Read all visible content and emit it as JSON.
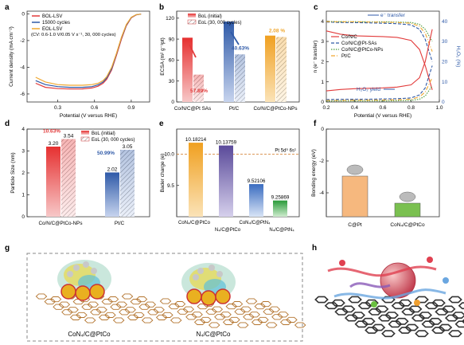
{
  "panel_letters": [
    "a",
    "b",
    "c",
    "d",
    "e",
    "f",
    "g",
    "h"
  ],
  "colors": {
    "red": "#e23b3b",
    "blue": "#2f5aa8",
    "orange": "#f0a830",
    "green": "#4a9a3a",
    "purple": "#7a5fa8",
    "skyblue": "#5b8fd6",
    "peach": "#f6b87e",
    "olive": "#7aa83a"
  },
  "chart_data": [
    {
      "panel": "a",
      "type": "line",
      "xlabel": "Potential (V versus RHE)",
      "ylabel": "Current density (mA cm⁻²)",
      "xticks": [
        "0.3",
        "0.6",
        "0.9"
      ],
      "yticks": [
        "0",
        "-2",
        "-4",
        "-6"
      ],
      "xlim": [
        0.05,
        1.05
      ],
      "ylim": [
        -6.6,
        0.2
      ],
      "annotation": "(CV: 0.6-1.0 V/0.05 V s⁻¹, 30, 000 cycles)",
      "series": [
        {
          "name": "BOL-LSV",
          "color": "#e23b3b",
          "x": [
            0.12,
            0.2,
            0.3,
            0.4,
            0.5,
            0.58,
            0.63,
            0.67,
            0.7,
            0.74,
            0.78,
            0.82,
            0.86,
            0.9,
            0.94,
            0.98
          ],
          "y": [
            -5.2,
            -5.5,
            -5.6,
            -5.63,
            -5.62,
            -5.55,
            -5.42,
            -5.2,
            -4.9,
            -4.2,
            -3.1,
            -1.9,
            -0.9,
            -0.3,
            -0.08,
            -0.02
          ]
        },
        {
          "name": "15000 cycles",
          "color": "#2f5aa8",
          "x": [
            0.12,
            0.2,
            0.3,
            0.4,
            0.5,
            0.58,
            0.63,
            0.67,
            0.7,
            0.74,
            0.78,
            0.82,
            0.86,
            0.9,
            0.94,
            0.98
          ],
          "y": [
            -5.0,
            -5.3,
            -5.45,
            -5.5,
            -5.5,
            -5.45,
            -5.32,
            -5.1,
            -4.8,
            -4.1,
            -3.0,
            -1.8,
            -0.85,
            -0.28,
            -0.07,
            -0.02
          ]
        },
        {
          "name": "EOL-LSV",
          "color": "#f0a830",
          "x": [
            0.12,
            0.2,
            0.3,
            0.4,
            0.5,
            0.58,
            0.63,
            0.67,
            0.7,
            0.74,
            0.78,
            0.82,
            0.86,
            0.9,
            0.94,
            0.98
          ],
          "y": [
            -4.75,
            -5.1,
            -5.3,
            -5.35,
            -5.35,
            -5.3,
            -5.2,
            -5.0,
            -4.7,
            -4.0,
            -2.95,
            -1.75,
            -0.8,
            -0.26,
            -0.06,
            -0.02
          ]
        }
      ]
    },
    {
      "panel": "b",
      "type": "bar",
      "ylabel": "ECSA (m² g⁻¹pt)",
      "ylim": [
        0,
        130
      ],
      "yticks": [
        0,
        30,
        60,
        90,
        120
      ],
      "legend": [
        "BoL (initial)",
        "EoL (30, 000 cycles)"
      ],
      "categories": [
        "Co/N/C@Pt SAs",
        "Pt/C",
        "Co/N/C@PtCo-NPs"
      ],
      "series": [
        {
          "name": "BoL (initial)",
          "values": [
            92,
            115,
            95
          ]
        },
        {
          "name": "EoL (30, 000 cycles)",
          "values": [
            39,
            68,
            93
          ]
        }
      ],
      "labels": [
        "57.89%",
        "40.63%",
        "2.08 %"
      ]
    },
    {
      "panel": "c",
      "type": "line",
      "xlabel": "Potential (V versus RHE)",
      "ylabel": "n (e⁻ transfer)",
      "ylabel_right": "H₂O₂ (%)",
      "xticks": [
        "0.2",
        "0.4",
        "0.6",
        "0.8",
        "1.0"
      ],
      "yticks": [
        "0",
        "1",
        "2",
        "3",
        "4"
      ],
      "yticks_right": [
        "0",
        "10",
        "20",
        "30",
        "40"
      ],
      "xlim": [
        0.2,
        1.0
      ],
      "ylim": [
        0,
        4.5
      ],
      "annotations": [
        "e⁻ transfer",
        "H₂O₂ yield"
      ],
      "series": [
        {
          "name": "Co/N/C",
          "color": "#e23b3b",
          "x": [
            0.2,
            0.3,
            0.4,
            0.5,
            0.6,
            0.7,
            0.8,
            0.86,
            0.9,
            0.95
          ],
          "y": [
            3.52,
            3.36,
            3.28,
            3.26,
            3.24,
            3.2,
            3.05,
            2.6,
            1.8,
            0.6
          ]
        },
        {
          "name": "Co/N/C@Pt-SAs",
          "color": "#2f5aa8",
          "x": [
            0.2,
            0.3,
            0.4,
            0.5,
            0.6,
            0.7,
            0.8,
            0.86,
            0.9,
            0.95
          ],
          "y": [
            3.96,
            3.94,
            3.93,
            3.92,
            3.9,
            3.88,
            3.82,
            3.6,
            3.1,
            2.0
          ]
        },
        {
          "name": "Co/N/C@PtCo-NPs",
          "color": "#4a9a3a",
          "x": [
            0.2,
            0.3,
            0.4,
            0.5,
            0.6,
            0.7,
            0.8,
            0.86,
            0.9,
            0.95
          ],
          "y": [
            3.99,
            3.98,
            3.98,
            3.97,
            3.97,
            3.96,
            3.94,
            3.85,
            3.6,
            3.0
          ]
        },
        {
          "name": "Pt/C",
          "color": "#f0a830",
          "x": [
            0.2,
            0.3,
            0.4,
            0.5,
            0.6,
            0.7,
            0.8,
            0.86,
            0.9,
            0.95
          ],
          "y": [
            3.98,
            3.97,
            3.97,
            3.96,
            3.95,
            3.94,
            3.9,
            3.75,
            3.4,
            2.5
          ]
        },
        {
          "name": "Co/N/C H₂O₂",
          "color": "#e23b3b",
          "x": [
            0.2,
            0.3,
            0.4,
            0.5,
            0.6,
            0.7,
            0.8,
            0.86,
            0.9,
            0.95
          ],
          "y": [
            0.55,
            0.62,
            0.66,
            0.68,
            0.7,
            0.74,
            0.85,
            1.2,
            2.0,
            3.6
          ]
        },
        {
          "name": "Co/N/C@Pt-SAs H₂O₂",
          "color": "#2f5aa8",
          "x": [
            0.2,
            0.3,
            0.4,
            0.5,
            0.6,
            0.7,
            0.8,
            0.86,
            0.9,
            0.95
          ],
          "y": [
            0.12,
            0.13,
            0.14,
            0.14,
            0.15,
            0.16,
            0.2,
            0.35,
            0.7,
            1.8
          ]
        },
        {
          "name": "Co/N/C@PtCo-NPs H₂O₂",
          "color": "#4a9a3a",
          "x": [
            0.2,
            0.3,
            0.4,
            0.5,
            0.6,
            0.7,
            0.8,
            0.86,
            0.9,
            0.95
          ],
          "y": [
            0.04,
            0.05,
            0.05,
            0.05,
            0.05,
            0.06,
            0.08,
            0.14,
            0.3,
            0.8
          ]
        },
        {
          "name": "Pt/C H₂O₂",
          "color": "#f0a830",
          "x": [
            0.2,
            0.3,
            0.4,
            0.5,
            0.6,
            0.7,
            0.8,
            0.86,
            0.9,
            0.95
          ],
          "y": [
            0.08,
            0.08,
            0.09,
            0.09,
            0.1,
            0.11,
            0.14,
            0.25,
            0.5,
            1.2
          ]
        }
      ]
    },
    {
      "panel": "d",
      "type": "bar",
      "ylabel": "Particle Size (nm)",
      "ylim": [
        0,
        4
      ],
      "yticks": [
        0,
        1,
        2,
        3,
        4
      ],
      "legend": [
        "BoL (initial)",
        "EoL (30, 000 cycles)"
      ],
      "categories": [
        "Co/N/C@PtCo-NPs",
        "Pt/C"
      ],
      "series": [
        {
          "name": "BoL (initial)",
          "values": [
            3.2,
            2.02
          ]
        },
        {
          "name": "EoL (30, 000 cycles)",
          "values": [
            3.54,
            3.05
          ]
        }
      ],
      "value_labels": [
        [
          "3.20",
          "3.54"
        ],
        [
          "2.02",
          "3.05"
        ]
      ],
      "labels": [
        "10.63%",
        "50.99%"
      ]
    },
    {
      "panel": "e",
      "type": "bar",
      "ylabel": "Bader charge (e)",
      "ylim": [
        9.0,
        10.4
      ],
      "yticks": [
        "9.5",
        "10.0"
      ],
      "reference_line": {
        "value": 10.0,
        "label": "Pt 5d⁹ 6s¹"
      },
      "categories": [
        "CoN₄/C@PtCo",
        "N₄/C@PtCo",
        "CoN₄/C@PtN₄",
        "N₄/C@PtN₄"
      ],
      "values": [
        10.18214,
        10.13759,
        9.52106,
        9.25869
      ],
      "value_labels": [
        "10.18214",
        "10.13759",
        "9.52106",
        "9.25869"
      ]
    },
    {
      "panel": "f",
      "type": "bar",
      "ylabel": "Bonding energy (eV)",
      "ylim": [
        0,
        -5.5
      ],
      "yticks": [
        "0",
        "-2",
        "-4"
      ],
      "categories": [
        "C@Pt",
        "CoN₄/C@PtCo"
      ],
      "values": [
        -2.95,
        -4.65
      ]
    }
  ],
  "panel_g": {
    "labels": [
      "CoN₄/C@PtCo",
      "N₄/C@PtCo"
    ]
  }
}
